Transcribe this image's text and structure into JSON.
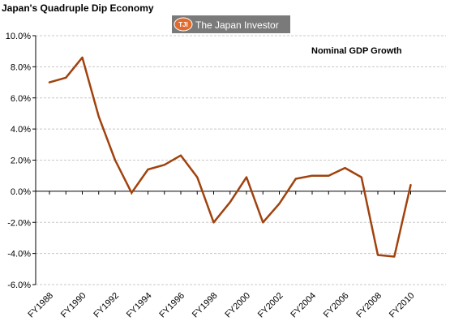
{
  "page": {
    "title": "Japan's Quadruple Dip Economy",
    "logo": {
      "badge": "TJI",
      "text": "The Japan Investor"
    }
  },
  "chart_data": {
    "type": "line",
    "title": "Japan's Quadruple Dip Economy",
    "xlabel": "",
    "ylabel": "",
    "legend": {
      "placement": "top-right",
      "entries": [
        "Nominal GDP Growth"
      ]
    },
    "grid": {
      "horizontal": true,
      "vertical": false
    },
    "ylim": [
      -6.0,
      10.0
    ],
    "y_ticks": [
      "10.0%",
      "8.0%",
      "6.0%",
      "4.0%",
      "2.0%",
      "0.0%",
      "-2.0%",
      "-4.0%",
      "-6.0%"
    ],
    "x_tick_labels": [
      "FY1988",
      "FY1990",
      "FY1992",
      "FY1994",
      "FY1996",
      "FY1998",
      "FY2000",
      "FY2002",
      "FY2004",
      "FY2006",
      "FY2008",
      "FY2010"
    ],
    "categories": [
      "FY1988",
      "FY1989",
      "FY1990",
      "FY1991",
      "FY1992",
      "FY1993",
      "FY1994",
      "FY1995",
      "FY1996",
      "FY1997",
      "FY1998",
      "FY1999",
      "FY2000",
      "FY2001",
      "FY2002",
      "FY2003",
      "FY2004",
      "FY2005",
      "FY2006",
      "FY2007",
      "FY2008",
      "FY2009",
      "FY2010"
    ],
    "series": [
      {
        "name": "Nominal GDP Growth",
        "color": "#a0420e",
        "values": [
          7.0,
          7.3,
          8.6,
          4.8,
          2.0,
          -0.1,
          1.4,
          1.7,
          2.3,
          0.9,
          -2.0,
          -0.7,
          0.9,
          -2.0,
          -0.8,
          0.8,
          1.0,
          1.0,
          1.5,
          0.9,
          -4.1,
          -4.2,
          0.4
        ]
      }
    ]
  }
}
